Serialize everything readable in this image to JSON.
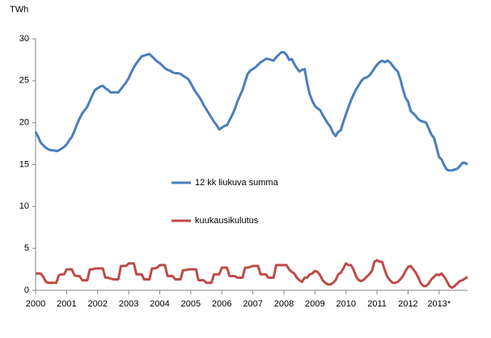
{
  "chart_data": {
    "type": "line",
    "y_label": "TWh",
    "categories": [
      "2000",
      null,
      null,
      null,
      null,
      null,
      null,
      null,
      null,
      null,
      null,
      null,
      "2001",
      null,
      null,
      null,
      null,
      null,
      null,
      null,
      null,
      null,
      null,
      null,
      "2002",
      null,
      null,
      null,
      null,
      null,
      null,
      null,
      null,
      null,
      null,
      null,
      "2003",
      null,
      null,
      null,
      null,
      null,
      null,
      null,
      null,
      null,
      null,
      null,
      "2004",
      null,
      null,
      null,
      null,
      null,
      null,
      null,
      null,
      null,
      null,
      null,
      "2005",
      null,
      null,
      null,
      null,
      null,
      null,
      null,
      null,
      null,
      null,
      null,
      "2006",
      null,
      null,
      null,
      null,
      null,
      null,
      null,
      null,
      null,
      null,
      null,
      "2007",
      null,
      null,
      null,
      null,
      null,
      null,
      null,
      null,
      null,
      null,
      null,
      "2008",
      null,
      null,
      null,
      null,
      null,
      null,
      null,
      null,
      null,
      null,
      null,
      "2009",
      null,
      null,
      null,
      null,
      null,
      null,
      null,
      null,
      null,
      null,
      null,
      "2010",
      null,
      null,
      null,
      null,
      null,
      null,
      null,
      null,
      null,
      null,
      null,
      "2011",
      null,
      null,
      null,
      null,
      null,
      null,
      null,
      null,
      null,
      null,
      null,
      "2012",
      null,
      null,
      null,
      null,
      null,
      null,
      null,
      null,
      null,
      null,
      null,
      "2013*",
      null,
      null,
      null,
      null,
      null,
      null,
      null,
      null,
      null,
      null,
      null
    ],
    "series": [
      {
        "name": "12 kk liukuva summa",
        "color": "#4a7ebb",
        "values": [
          18.9,
          18.3,
          17.6,
          17.3,
          17.0,
          16.8,
          16.7,
          16.7,
          16.6,
          16.7,
          16.9,
          17.1,
          17.4,
          17.9,
          18.3,
          19.0,
          19.8,
          20.5,
          21.1,
          21.5,
          21.9,
          22.6,
          23.3,
          23.9,
          24.1,
          24.3,
          24.4,
          24.1,
          23.9,
          23.6,
          23.6,
          23.6,
          23.6,
          24.0,
          24.4,
          24.8,
          25.3,
          26.0,
          26.6,
          27.1,
          27.5,
          27.9,
          28.0,
          28.1,
          28.2,
          27.9,
          27.6,
          27.3,
          27.1,
          26.8,
          26.5,
          26.3,
          26.2,
          26.0,
          25.9,
          25.9,
          25.8,
          25.6,
          25.4,
          25.2,
          24.7,
          24.1,
          23.6,
          23.2,
          22.7,
          22.1,
          21.6,
          21.1,
          20.6,
          20.1,
          19.7,
          19.2,
          19.4,
          19.6,
          19.7,
          20.3,
          20.9,
          21.6,
          22.5,
          23.2,
          23.9,
          24.9,
          25.8,
          26.2,
          26.4,
          26.6,
          26.9,
          27.2,
          27.4,
          27.6,
          27.6,
          27.5,
          27.4,
          27.8,
          28.1,
          28.4,
          28.4,
          28.1,
          27.5,
          27.6,
          27.0,
          26.5,
          26.1,
          26.3,
          26.4,
          24.7,
          23.4,
          22.6,
          22.0,
          21.7,
          21.5,
          20.9,
          20.4,
          19.9,
          19.5,
          18.8,
          18.4,
          18.9,
          19.1,
          20.1,
          21.0,
          21.9,
          22.7,
          23.4,
          24.0,
          24.5,
          25.0,
          25.3,
          25.4,
          25.6,
          26.0,
          26.5,
          26.9,
          27.2,
          27.4,
          27.2,
          27.4,
          27.2,
          26.8,
          26.4,
          26.1,
          25.2,
          24.0,
          23.0,
          22.5,
          21.4,
          21.1,
          20.8,
          20.4,
          20.2,
          20.1,
          20.0,
          19.3,
          18.6,
          18.2,
          17.1,
          15.9,
          15.6,
          14.9,
          14.4,
          14.3,
          14.3,
          14.4,
          14.5,
          14.8,
          15.2,
          15.2,
          15.0
        ]
      },
      {
        "name": "kuukausikulutus",
        "color": "#be4b48",
        "values": [
          2.0,
          2.0,
          2.0,
          1.6,
          1.0,
          0.9,
          0.9,
          0.9,
          0.9,
          1.8,
          1.9,
          1.9,
          2.5,
          2.5,
          2.5,
          1.8,
          1.7,
          1.7,
          1.2,
          1.2,
          1.2,
          2.5,
          2.5,
          2.6,
          2.6,
          2.6,
          2.6,
          1.5,
          1.5,
          1.4,
          1.3,
          1.3,
          1.3,
          2.9,
          2.9,
          2.9,
          3.2,
          3.2,
          3.2,
          1.9,
          1.9,
          1.9,
          1.3,
          1.3,
          1.3,
          2.6,
          2.6,
          2.7,
          3.0,
          3.0,
          3.0,
          1.7,
          1.7,
          1.7,
          1.3,
          1.3,
          1.3,
          2.4,
          2.4,
          2.5,
          2.5,
          2.5,
          2.5,
          1.2,
          1.2,
          1.2,
          0.9,
          0.9,
          0.9,
          1.9,
          1.9,
          1.9,
          2.7,
          2.7,
          2.7,
          1.7,
          1.7,
          1.7,
          1.5,
          1.5,
          1.5,
          2.7,
          2.7,
          2.8,
          2.9,
          2.9,
          2.9,
          1.9,
          1.9,
          1.9,
          1.5,
          1.5,
          1.5,
          3.0,
          3.0,
          3.0,
          3.0,
          3.0,
          2.5,
          2.2,
          2.0,
          1.5,
          1.2,
          1.0,
          1.5,
          1.5,
          1.9,
          2.0,
          2.3,
          2.2,
          1.8,
          1.2,
          0.9,
          0.7,
          0.7,
          0.9,
          1.2,
          1.9,
          2.1,
          2.6,
          3.2,
          3.0,
          3.0,
          2.4,
          1.6,
          1.2,
          1.1,
          1.3,
          1.6,
          1.9,
          2.3,
          3.4,
          3.6,
          3.4,
          3.4,
          2.4,
          1.6,
          1.2,
          0.9,
          0.9,
          1.0,
          1.3,
          1.7,
          2.3,
          2.8,
          2.9,
          2.5,
          2.1,
          1.5,
          0.8,
          0.5,
          0.5,
          0.8,
          1.3,
          1.6,
          1.9,
          1.8,
          2.0,
          1.6,
          1.1,
          0.5,
          0.3,
          0.5,
          0.8,
          1.1,
          1.2,
          1.4,
          1.6
        ]
      }
    ],
    "ylim": [
      0,
      30
    ],
    "yticks": [
      0,
      5,
      10,
      15,
      20,
      25,
      30
    ],
    "grid": false
  }
}
